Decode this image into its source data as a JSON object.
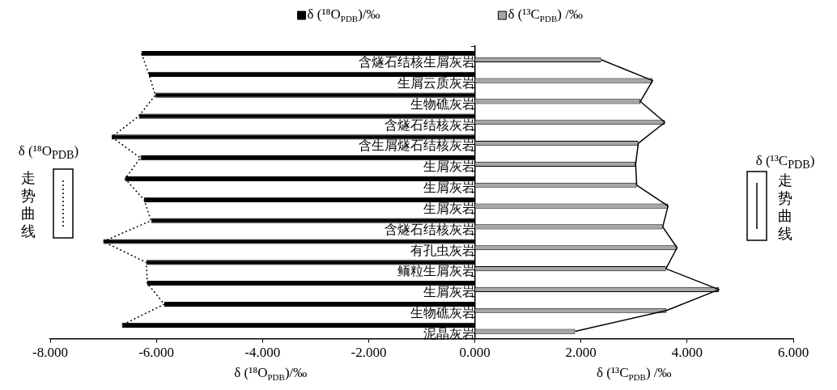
{
  "chart_data": {
    "type": "bar",
    "orientation": "horizontal",
    "legend": "top",
    "categories": [
      "含燧石结核生屑灰岩",
      "生屑云质灰岩",
      "生物礁灰岩",
      "含燧石结核灰岩",
      "含生屑燧石结核灰岩",
      "生屑灰岩",
      "生屑灰岩",
      "生屑灰岩",
      "含燧石结核灰岩",
      "有孔虫灰岩",
      "鲕粒生屑灰岩",
      "生屑灰岩",
      "生物礁灰岩",
      "泥晶灰岩"
    ],
    "series": [
      {
        "name": "δ (¹⁸O$_{PDB}$)/‰",
        "color": "#000000",
        "values": [
          -6.28,
          -6.14,
          -6.02,
          -6.33,
          -6.84,
          -6.3,
          -6.59,
          -6.23,
          -6.1,
          -7.0,
          -6.19,
          -6.17,
          -5.85,
          -6.65
        ]
      },
      {
        "name": "δ (¹³C$_{PDB}$) /‰",
        "color": "#a6a6a6",
        "values": [
          2.38,
          3.35,
          3.12,
          3.58,
          3.08,
          3.03,
          3.05,
          3.64,
          3.54,
          3.81,
          3.6,
          4.6,
          3.61,
          1.89
        ]
      },
      {
        "type": "line",
        "name": "δ (¹⁸O$_{PDB}$) 走势曲线",
        "color": "#000000",
        "line_style": "dotted",
        "values": [
          -6.28,
          -6.14,
          -6.02,
          -6.33,
          -6.84,
          -6.3,
          -6.59,
          -6.23,
          -6.1,
          -7.0,
          -6.19,
          -6.17,
          -5.85,
          -6.65
        ]
      },
      {
        "type": "line",
        "name": "δ (¹³C$_{PDB}$) 走势曲线",
        "color": "#000000",
        "line_style": "solid",
        "values": [
          2.38,
          3.35,
          3.12,
          3.58,
          3.08,
          3.03,
          3.05,
          3.64,
          3.54,
          3.81,
          3.6,
          4.6,
          3.61,
          1.89
        ]
      }
    ],
    "xlim": [
      -8,
      6
    ],
    "xticks": [
      {
        "value": -8,
        "label": "-8.000"
      },
      {
        "value": -6,
        "label": "-6.000"
      },
      {
        "value": -4,
        "label": "-4.000"
      },
      {
        "value": -2,
        "label": "-2.000"
      },
      {
        "value": 0,
        "label": "0.000"
      },
      {
        "value": 2,
        "label": "2.000"
      },
      {
        "value": 4,
        "label": "4.000"
      },
      {
        "value": 6,
        "label": "6.000"
      }
    ],
    "xlabel": "δ (¹⁸O$_{PDB}$)/‰",
    "annotations": [
      "δ (¹³C$_{PDB}$) /‰"
    ]
  }
}
